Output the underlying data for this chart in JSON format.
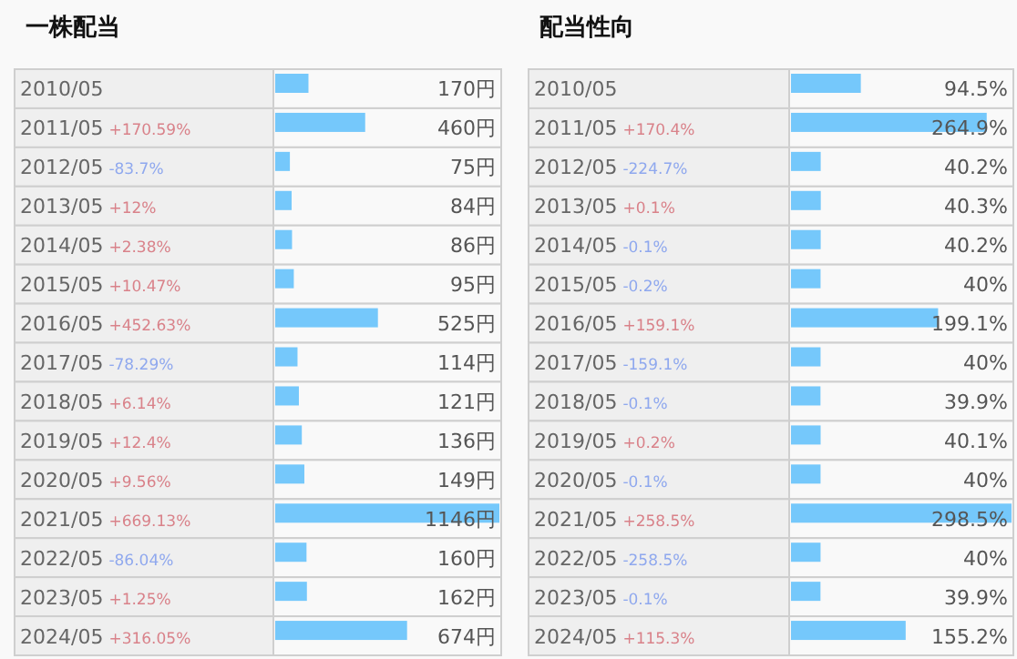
{
  "chart_data": [
    {
      "type": "bar",
      "orientation": "horizontal",
      "title": "一株配当",
      "categories": [
        "2010/05",
        "2011/05 +170.59%",
        "2012/05 -83.7%",
        "2013/05 +12%",
        "2014/05 +2.38%",
        "2015/05 +10.47%",
        "2016/05 +452.63%",
        "2017/05 -78.29%",
        "2018/05 +6.14%",
        "2019/05 +12.4%",
        "2020/05 +9.56%",
        "2021/05 +669.13%",
        "2022/05 -86.04%",
        "2023/05 +1.25%",
        "2024/05 +316.05%"
      ],
      "series": [
        {
          "color": "#75c8fb",
          "values": [
            170,
            460,
            75,
            84,
            86,
            95,
            525,
            114,
            121,
            136,
            149,
            1146,
            160,
            162,
            674
          ],
          "value_labels": [
            "170円",
            "460円",
            "75円",
            "84円",
            "86円",
            "95円",
            "525円",
            "114円",
            "121円",
            "136円",
            "149円",
            "1146円",
            "160円",
            "162円",
            "674円"
          ]
        }
      ]
    },
    {
      "type": "bar",
      "orientation": "horizontal",
      "title": "配当性向",
      "categories": [
        "2010/05",
        "2011/05 +170.4%",
        "2012/05 -224.7%",
        "2013/05 +0.1%",
        "2014/05 -0.1%",
        "2015/05 -0.2%",
        "2016/05 +159.1%",
        "2017/05 -159.1%",
        "2018/05 -0.1%",
        "2019/05 +0.2%",
        "2020/05 -0.1%",
        "2021/05 +258.5%",
        "2022/05 -258.5%",
        "2023/05 -0.1%",
        "2024/05 +115.3%"
      ],
      "series": [
        {
          "color": "#75c8fb",
          "values": [
            94.5,
            264.9,
            40.2,
            40.3,
            40.2,
            40,
            199.1,
            40,
            39.9,
            40.1,
            40,
            298.5,
            40,
            39.9,
            155.2
          ],
          "value_labels": [
            "94.5%",
            "264.9%",
            "40.2%",
            "40.3%",
            "40.2%",
            "40%",
            "199.1%",
            "40%",
            "39.9%",
            "40.1%",
            "40%",
            "298.5%",
            "40%",
            "39.9%",
            "155.2%"
          ]
        }
      ]
    }
  ]
}
